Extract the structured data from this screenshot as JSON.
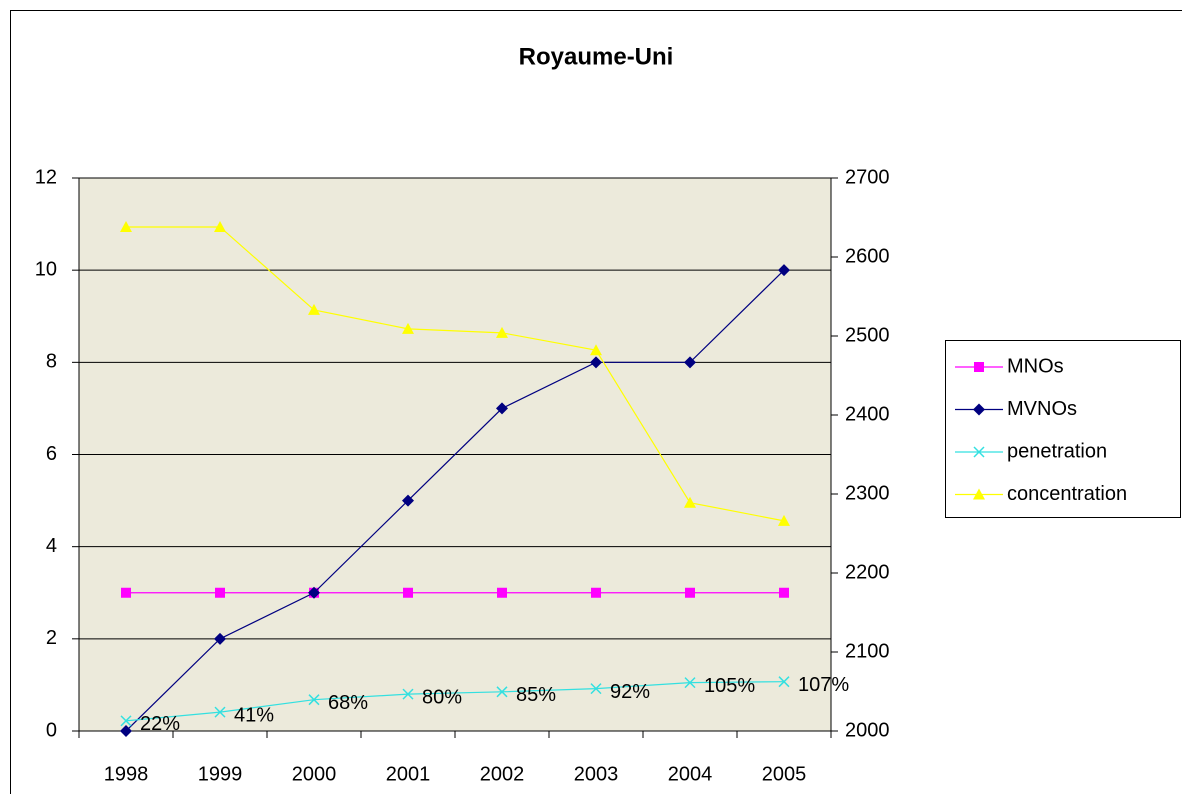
{
  "chart_data": {
    "type": "line",
    "title": "Royaume-Uni",
    "categories": [
      "1998",
      "1999",
      "2000",
      "2001",
      "2002",
      "2003",
      "2004",
      "2005"
    ],
    "ylim": [
      0,
      12
    ],
    "yticks": [
      0,
      2,
      4,
      6,
      8,
      10,
      12
    ],
    "y2lim": [
      2000,
      2700
    ],
    "y2ticks": [
      2000,
      2100,
      2200,
      2300,
      2400,
      2500,
      2600,
      2700
    ],
    "grid": true,
    "legend": "right",
    "background": "#ECEADB",
    "series": [
      {
        "name": "MNOs",
        "color": "#FF00FF",
        "marker": "square",
        "values": [
          3,
          3,
          3,
          3,
          3,
          3,
          3,
          3
        ]
      },
      {
        "name": "MVNOs",
        "color": "#000080",
        "marker": "diamond",
        "values": [
          0,
          2,
          3,
          5,
          7,
          8,
          8,
          10
        ]
      },
      {
        "name": "penetration",
        "color": "#33E0E0",
        "marker": "x",
        "values": [
          0.22,
          0.41,
          0.68,
          0.8,
          0.85,
          0.92,
          1.05,
          1.07
        ],
        "value_labels": [
          "22%",
          "41%",
          "68%",
          "80%",
          "85%",
          "92%",
          "105%",
          "107%"
        ]
      },
      {
        "name": "concentration",
        "color": "#FFFF00",
        "marker": "triangle",
        "axis": "y2",
        "values": [
          2638,
          2638,
          2533,
          2509,
          2504,
          2482,
          2289,
          2266
        ]
      }
    ]
  }
}
